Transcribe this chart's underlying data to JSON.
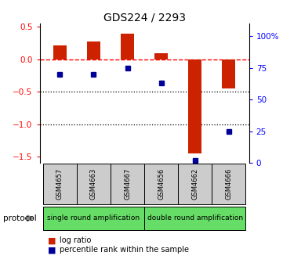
{
  "title": "GDS224 / 2293",
  "samples": [
    "GSM4657",
    "GSM4663",
    "GSM4667",
    "GSM4656",
    "GSM4662",
    "GSM4666"
  ],
  "log_ratios": [
    0.22,
    0.28,
    0.4,
    0.1,
    -1.45,
    -0.45
  ],
  "percentile_ranks": [
    70,
    70,
    75,
    63,
    2,
    25
  ],
  "group1_label": "single round amplification",
  "group2_label": "double round amplification",
  "group1_indices": [
    0,
    1,
    2
  ],
  "group2_indices": [
    3,
    4,
    5
  ],
  "bar_color": "#cc2200",
  "dot_color": "#000099",
  "ylim_left": [
    -1.6,
    0.55
  ],
  "ylim_right": [
    0,
    110
  ],
  "y_ticks_left": [
    -1.5,
    -1.0,
    -0.5,
    0.0,
    0.5
  ],
  "y_ticks_right": [
    0,
    25,
    50,
    75,
    100
  ],
  "dotted_lines": [
    -0.5,
    -1.0
  ],
  "sample_box_color": "#cccccc",
  "group_box_color": "#66dd66",
  "protocol_label": "protocol",
  "legend_items": [
    "log ratio",
    "percentile rank within the sample"
  ],
  "legend_colors": [
    "#cc2200",
    "#000099"
  ]
}
